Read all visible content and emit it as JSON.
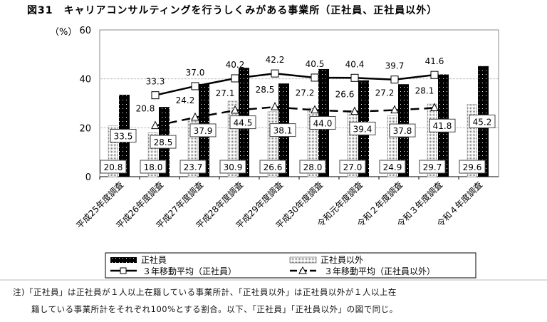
{
  "title": "図31　キャリアコンサルティングを行うしくみがある事業所（正社員、正社員以外）",
  "note_line1": "注)「正社員」は正社員が１人以上在籍している事業所計、「正社員以外」は正社員以外が１人以上在",
  "note_line2": "籍している事業所計をそれぞれ100%とする割合。以下、「正社員」「正社員以外」の図で同じ。",
  "chart_data": {
    "type": "bar",
    "ylabel": "（%）",
    "ylim": [
      0,
      60
    ],
    "yticks": [
      "0",
      "20",
      "40",
      "60"
    ],
    "grid": true,
    "legend_position": "bottom",
    "categories": [
      "平成25年度調査",
      "平成26年度調査",
      "平成27年度調査",
      "平成28年度調査",
      "平成29年度調査",
      "平成30年度調査",
      "令和元年度調査",
      "令和２年度調査",
      "令和３年度調査",
      "令和４年度調査"
    ],
    "series": [
      {
        "name": "正社員",
        "type": "bar",
        "values": [
          33.5,
          28.5,
          37.9,
          44.5,
          38.1,
          44.0,
          39.4,
          37.8,
          41.8,
          45.2
        ],
        "labels": [
          "33.5",
          "28.5",
          "37.9",
          "44.5",
          "38.1",
          "44.0",
          "39.4",
          "37.8",
          "41.8",
          "45.2"
        ]
      },
      {
        "name": "正社員以外",
        "type": "bar",
        "values": [
          20.8,
          18.0,
          23.7,
          30.9,
          26.6,
          28.0,
          27.0,
          24.9,
          29.7,
          29.6
        ],
        "labels": [
          "20.8",
          "18.0",
          "23.7",
          "30.9",
          "26.6",
          "28.0",
          "27.0",
          "24.9",
          "29.7",
          "29.6"
        ]
      },
      {
        "name": "３年移動平均（正社員）",
        "type": "line",
        "values": [
          null,
          33.3,
          37.0,
          40.2,
          42.2,
          40.5,
          40.4,
          39.7,
          41.6,
          null
        ],
        "labels": [
          "",
          "33.3",
          "37.0",
          "40.2",
          "42.2",
          "40.5",
          "40.4",
          "39.7",
          "41.6",
          ""
        ]
      },
      {
        "name": "３年移動平均（正社員以外）",
        "type": "line",
        "values": [
          null,
          20.8,
          24.2,
          27.1,
          28.5,
          27.2,
          26.6,
          27.2,
          28.1,
          null
        ],
        "labels": [
          "",
          "20.8",
          "24.2",
          "27.1",
          "28.5",
          "27.2",
          "26.6",
          "27.2",
          "28.1",
          ""
        ]
      }
    ]
  }
}
